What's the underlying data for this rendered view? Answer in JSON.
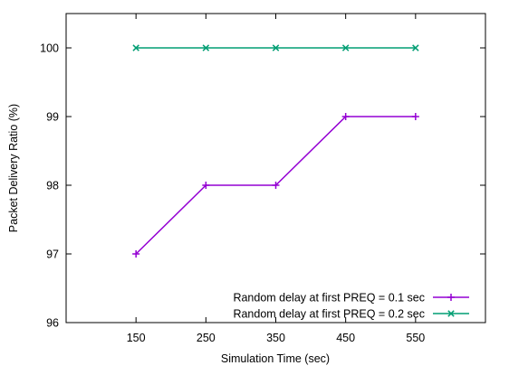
{
  "chart_data": {
    "type": "line",
    "title": "",
    "xlabel": "Simulation Time (sec)",
    "ylabel": "Packet Delivery Ratio (%)",
    "x": [
      150,
      250,
      350,
      450,
      550
    ],
    "x_ticks": [
      150,
      250,
      350,
      450,
      550
    ],
    "y_ticks": [
      96,
      97,
      98,
      99,
      100
    ],
    "xlim": [
      50,
      650
    ],
    "ylim": [
      96,
      100.5
    ],
    "grid": false,
    "legend_position": "bottom-right",
    "series": [
      {
        "name": "Random delay at first PREQ = 0.1 sec",
        "values": [
          97,
          98,
          98,
          99,
          99
        ],
        "color": "#9400d3",
        "marker": "plus"
      },
      {
        "name": "Random delay at first PREQ = 0.2 sec",
        "values": [
          100,
          100,
          100,
          100,
          100
        ],
        "color": "#009e73",
        "marker": "x"
      }
    ]
  }
}
